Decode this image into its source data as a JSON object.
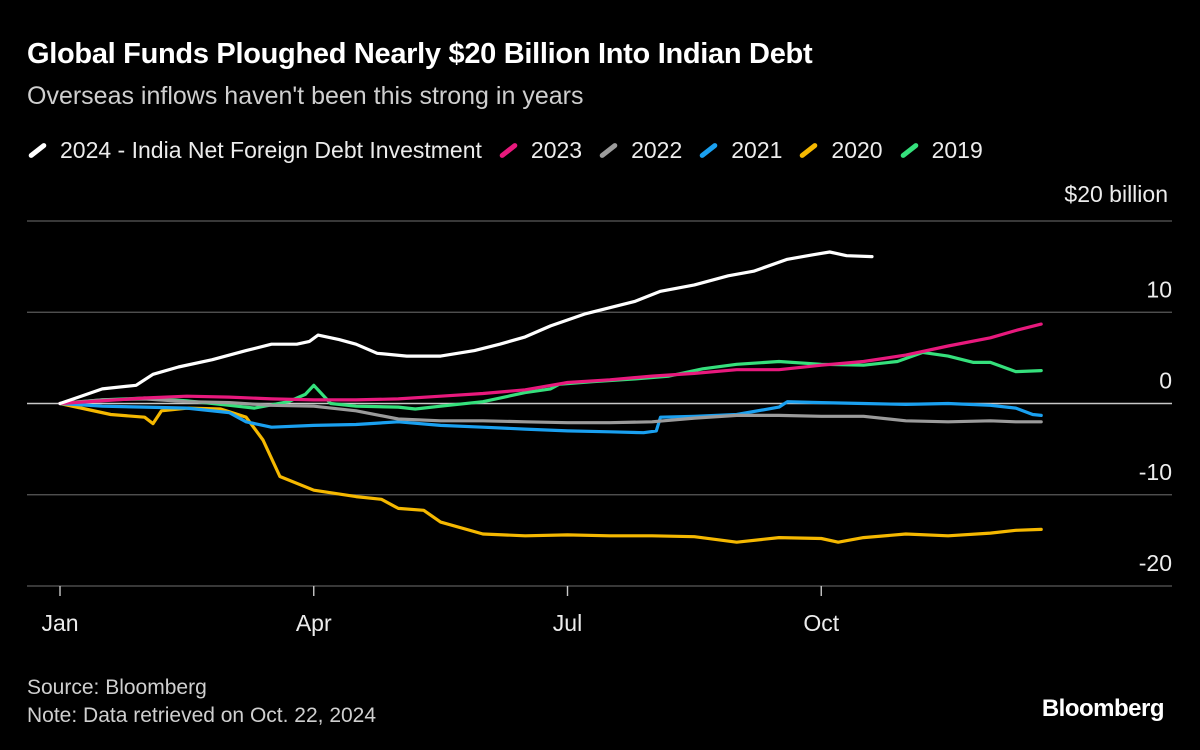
{
  "chart_data": {
    "type": "line",
    "title": "Global Funds Ploughed Nearly $20 Billion Into Indian Debt",
    "subtitle": "Overseas inflows haven't been this strong in years",
    "unit_label": "$20 billion",
    "ylim": [
      -20,
      20
    ],
    "yticks": [
      {
        "value": 10,
        "label": "10"
      },
      {
        "value": 0,
        "label": "0"
      },
      {
        "value": -10,
        "label": "-10"
      },
      {
        "value": -20,
        "label": "-20"
      }
    ],
    "xlim": [
      0,
      12
    ],
    "xticks": [
      {
        "value": 0,
        "label": "Jan"
      },
      {
        "value": 3,
        "label": "Apr"
      },
      {
        "value": 6,
        "label": "Jul"
      },
      {
        "value": 9,
        "label": "Oct"
      }
    ],
    "grid": true,
    "legend_position": "top",
    "series": [
      {
        "name": "2024 - India Net Foreign Debt Investment",
        "color": "#ffffff",
        "points": [
          [
            0,
            0
          ],
          [
            0.25,
            0.8
          ],
          [
            0.5,
            1.6
          ],
          [
            0.9,
            2
          ],
          [
            1.1,
            3.2
          ],
          [
            1.4,
            4
          ],
          [
            1.8,
            4.8
          ],
          [
            2.2,
            5.8
          ],
          [
            2.5,
            6.5
          ],
          [
            2.8,
            6.5
          ],
          [
            2.95,
            6.8
          ],
          [
            3.05,
            7.5
          ],
          [
            3.3,
            7
          ],
          [
            3.5,
            6.5
          ],
          [
            3.75,
            5.5
          ],
          [
            4.1,
            5.2
          ],
          [
            4.5,
            5.2
          ],
          [
            4.9,
            5.8
          ],
          [
            5.2,
            6.5
          ],
          [
            5.5,
            7.3
          ],
          [
            5.8,
            8.5
          ],
          [
            6.2,
            9.8
          ],
          [
            6.5,
            10.5
          ],
          [
            6.8,
            11.2
          ],
          [
            7.1,
            12.3
          ],
          [
            7.5,
            13
          ],
          [
            7.9,
            14
          ],
          [
            8.2,
            14.5
          ],
          [
            8.6,
            15.8
          ],
          [
            8.9,
            16.3
          ],
          [
            9.1,
            16.6
          ],
          [
            9.3,
            16.2
          ],
          [
            9.6,
            16.1
          ]
        ]
      },
      {
        "name": "2023",
        "color": "#e8197d",
        "points": [
          [
            0,
            0
          ],
          [
            0.5,
            0.3
          ],
          [
            1,
            0.6
          ],
          [
            1.5,
            0.8
          ],
          [
            2,
            0.7
          ],
          [
            2.5,
            0.5
          ],
          [
            3,
            0.4
          ],
          [
            3.5,
            0.4
          ],
          [
            4,
            0.5
          ],
          [
            4.5,
            0.8
          ],
          [
            5,
            1.1
          ],
          [
            5.5,
            1.5
          ],
          [
            6,
            2.3
          ],
          [
            6.5,
            2.6
          ],
          [
            7,
            3
          ],
          [
            7.5,
            3.3
          ],
          [
            8,
            3.7
          ],
          [
            8.5,
            3.7
          ],
          [
            9,
            4.2
          ],
          [
            9.5,
            4.6
          ],
          [
            10,
            5.3
          ],
          [
            10.5,
            6.3
          ],
          [
            11,
            7.2
          ],
          [
            11.3,
            8
          ],
          [
            11.6,
            8.7
          ]
        ]
      },
      {
        "name": "2022",
        "color": "#9b9b9b",
        "points": [
          [
            0,
            0
          ],
          [
            0.5,
            0.4
          ],
          [
            1,
            0.5
          ],
          [
            1.5,
            0.2
          ],
          [
            2,
            0.1
          ],
          [
            2.5,
            -0.2
          ],
          [
            3,
            -0.3
          ],
          [
            3.5,
            -0.8
          ],
          [
            4,
            -1.7
          ],
          [
            4.5,
            -1.9
          ],
          [
            5,
            -1.9
          ],
          [
            5.5,
            -2
          ],
          [
            6,
            -2.1
          ],
          [
            6.5,
            -2.1
          ],
          [
            7,
            -2
          ],
          [
            7.5,
            -1.6
          ],
          [
            8,
            -1.3
          ],
          [
            8.5,
            -1.3
          ],
          [
            9,
            -1.4
          ],
          [
            9.5,
            -1.4
          ],
          [
            10,
            -1.9
          ],
          [
            10.5,
            -2
          ],
          [
            11,
            -1.9
          ],
          [
            11.3,
            -2
          ],
          [
            11.6,
            -2
          ]
        ]
      },
      {
        "name": "2021",
        "color": "#1aa0f0",
        "points": [
          [
            0,
            0
          ],
          [
            0.5,
            -0.3
          ],
          [
            1,
            -0.4
          ],
          [
            1.5,
            -0.5
          ],
          [
            2,
            -1
          ],
          [
            2.2,
            -2
          ],
          [
            2.5,
            -2.6
          ],
          [
            3,
            -2.4
          ],
          [
            3.5,
            -2.3
          ],
          [
            4,
            -2
          ],
          [
            4.5,
            -2.4
          ],
          [
            5,
            -2.6
          ],
          [
            5.5,
            -2.8
          ],
          [
            6,
            -3
          ],
          [
            6.5,
            -3.1
          ],
          [
            6.9,
            -3.2
          ],
          [
            7.05,
            -3
          ],
          [
            7.1,
            -1.5
          ],
          [
            7.5,
            -1.4
          ],
          [
            8,
            -1.2
          ],
          [
            8.5,
            -0.4
          ],
          [
            8.6,
            0.2
          ],
          [
            9,
            0.1
          ],
          [
            9.5,
            0
          ],
          [
            10,
            -0.1
          ],
          [
            10.5,
            0
          ],
          [
            11,
            -0.2
          ],
          [
            11.3,
            -0.5
          ],
          [
            11.5,
            -1.2
          ],
          [
            11.6,
            -1.3
          ]
        ]
      },
      {
        "name": "2020",
        "color": "#f5b800",
        "points": [
          [
            0,
            0
          ],
          [
            0.3,
            -0.6
          ],
          [
            0.6,
            -1.2
          ],
          [
            1,
            -1.5
          ],
          [
            1.1,
            -2.2
          ],
          [
            1.2,
            -0.8
          ],
          [
            1.5,
            -0.5
          ],
          [
            1.9,
            -0.6
          ],
          [
            2.2,
            -1.5
          ],
          [
            2.4,
            -4
          ],
          [
            2.6,
            -8
          ],
          [
            3,
            -9.5
          ],
          [
            3.5,
            -10.2
          ],
          [
            3.8,
            -10.5
          ],
          [
            4,
            -11.5
          ],
          [
            4.3,
            -11.7
          ],
          [
            4.5,
            -13
          ],
          [
            5,
            -14.3
          ],
          [
            5.5,
            -14.5
          ],
          [
            6,
            -14.4
          ],
          [
            6.5,
            -14.5
          ],
          [
            7,
            -14.5
          ],
          [
            7.5,
            -14.6
          ],
          [
            8,
            -15.2
          ],
          [
            8.5,
            -14.7
          ],
          [
            9,
            -14.8
          ],
          [
            9.2,
            -15.2
          ],
          [
            9.5,
            -14.7
          ],
          [
            10,
            -14.3
          ],
          [
            10.5,
            -14.5
          ],
          [
            11,
            -14.2
          ],
          [
            11.3,
            -13.9
          ],
          [
            11.6,
            -13.8
          ]
        ]
      },
      {
        "name": "2019",
        "color": "#35e07c",
        "points": [
          [
            0,
            0
          ],
          [
            0.5,
            0.4
          ],
          [
            1,
            0.6
          ],
          [
            1.5,
            0.3
          ],
          [
            2,
            -0.2
          ],
          [
            2.3,
            -0.5
          ],
          [
            2.7,
            0.2
          ],
          [
            2.9,
            1
          ],
          [
            3,
            2
          ],
          [
            3.2,
            0
          ],
          [
            3.5,
            -0.3
          ],
          [
            4,
            -0.4
          ],
          [
            4.2,
            -0.6
          ],
          [
            4.5,
            -0.3
          ],
          [
            5,
            0.2
          ],
          [
            5.5,
            1.2
          ],
          [
            5.8,
            1.6
          ],
          [
            5.9,
            2.1
          ],
          [
            6.3,
            2.4
          ],
          [
            6.8,
            2.7
          ],
          [
            7.2,
            3
          ],
          [
            7.6,
            3.8
          ],
          [
            8,
            4.3
          ],
          [
            8.5,
            4.6
          ],
          [
            9,
            4.3
          ],
          [
            9.5,
            4.2
          ],
          [
            9.9,
            4.6
          ],
          [
            10.2,
            5.6
          ],
          [
            10.5,
            5.2
          ],
          [
            10.8,
            4.5
          ],
          [
            11,
            4.5
          ],
          [
            11.3,
            3.5
          ],
          [
            11.6,
            3.6
          ]
        ]
      }
    ],
    "source": "Source: Bloomberg",
    "note": "Note: Data retrieved on Oct. 22, 2024",
    "brand": "Bloomberg"
  }
}
